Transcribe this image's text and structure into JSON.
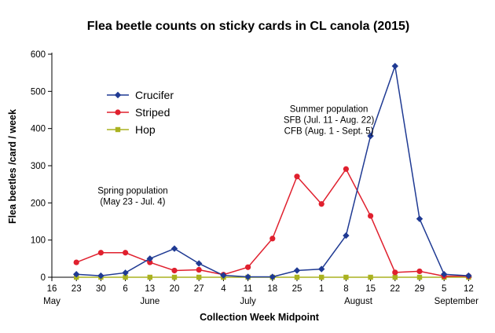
{
  "chart_data": {
    "type": "line",
    "title": "Flea beetle counts on sticky cards in CL canola (2015)",
    "xlabel": "Collection Week Midpoint",
    "ylabel": "Flea beetles /card / week",
    "ylim": [
      0,
      600
    ],
    "yticks": [
      0,
      100,
      200,
      300,
      400,
      500,
      600
    ],
    "grid": false,
    "legend_position": "top-left",
    "categories": [
      "16",
      "23",
      "30",
      "6",
      "13",
      "20",
      "27",
      "4",
      "11",
      "18",
      "25",
      "1",
      "8",
      "15",
      "22",
      "29",
      "5",
      "12"
    ],
    "months": [
      {
        "label": "May",
        "at": 0
      },
      {
        "label": "June",
        "at": 4
      },
      {
        "label": "July",
        "at": 8
      },
      {
        "label": "August",
        "at": 12.5
      },
      {
        "label": "September",
        "at": 16.5
      }
    ],
    "series": [
      {
        "name": "Crucifer",
        "color": "#1f3a93",
        "marker": "diamond",
        "values": [
          null,
          8,
          4,
          12,
          50,
          77,
          37,
          5,
          1,
          1,
          18,
          22,
          112,
          380,
          568,
          157,
          8,
          4
        ]
      },
      {
        "name": "Striped",
        "color": "#e0202e",
        "marker": "circle",
        "values": [
          null,
          40,
          66,
          66,
          40,
          18,
          20,
          7,
          27,
          104,
          271,
          197,
          291,
          165,
          13,
          16,
          3,
          3
        ]
      },
      {
        "name": "Hop",
        "color": "#aab220",
        "marker": "square",
        "values": [
          null,
          0,
          0,
          0,
          0,
          0,
          0,
          0,
          0,
          0,
          0,
          0,
          0,
          0,
          0,
          0,
          0,
          0
        ]
      }
    ],
    "annotations": [
      {
        "lines": [
          "Spring population",
          "(May 23 - Jul. 4)"
        ],
        "at_category": 3.3,
        "at_value": 225
      },
      {
        "lines": [
          "Summer population",
          "SFB (Jul. 11 - Aug. 22)",
          "CFB (Aug. 1 - Sept. 5)"
        ],
        "at_category": 11.3,
        "at_value": 445
      }
    ]
  }
}
